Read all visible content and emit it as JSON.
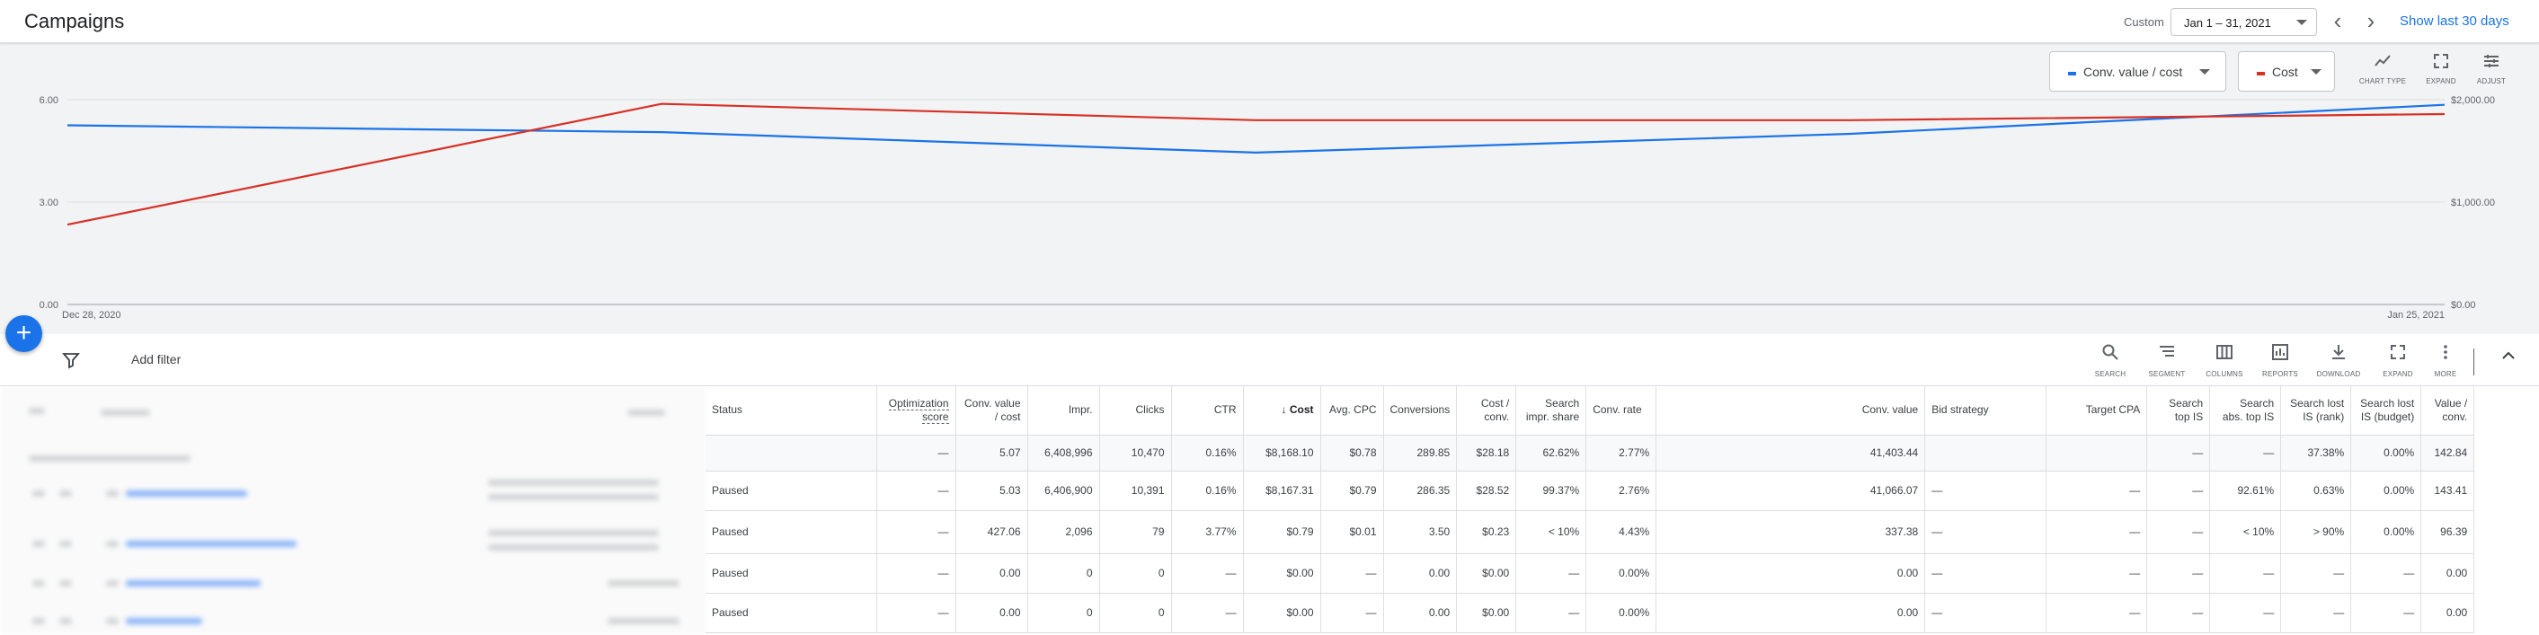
{
  "header": {
    "title": "Campaigns",
    "custom_label": "Custom",
    "date_range": "Jan 1 – 31, 2021",
    "show_last": "Show last 30 days"
  },
  "chart": {
    "metric1": "Conv. value / cost",
    "metric2": "Cost",
    "tools": [
      "CHART TYPE",
      "EXPAND",
      "ADJUST"
    ]
  },
  "chart_data": {
    "type": "line",
    "x": [
      "Dec 28, 2020",
      "Jan 4, 2021",
      "Jan 11, 2021",
      "Jan 18, 2021",
      "Jan 25, 2021"
    ],
    "x_labels": [
      "Dec 28, 2020",
      "Jan 25, 2021"
    ],
    "series": [
      {
        "name": "Conv. value / cost",
        "axis": "left",
        "color": "#1a73e8",
        "values": [
          5.25,
          5.05,
          4.45,
          5.0,
          5.85
        ]
      },
      {
        "name": "Cost",
        "axis": "right",
        "color": "#d93025",
        "values": [
          780,
          1960,
          1800,
          1800,
          1860
        ]
      }
    ],
    "y_left_ticks": [
      "0.00",
      "3.00",
      "6.00"
    ],
    "y_left_range": [
      0,
      6
    ],
    "y_right_ticks": [
      "$0.00",
      "$1,000.00",
      "$2,000.00"
    ],
    "y_right_range": [
      0,
      2000
    ],
    "grid": true
  },
  "filterbar": {
    "add_filter": "Add filter",
    "tools": [
      "SEARCH",
      "SEGMENT",
      "COLUMNS",
      "REPORTS",
      "DOWNLOAD",
      "EXPAND",
      "MORE"
    ]
  },
  "table": {
    "headers": [
      "Status",
      "Optimization score",
      "Conv. value / cost",
      "Impr.",
      "Clicks",
      "CTR",
      "Cost",
      "Avg. CPC",
      "Conversions",
      "Cost / conv.",
      "Search impr. share",
      "Conv. rate",
      "Conv. value",
      "Bid strategy",
      "Target CPA",
      "Search top IS",
      "Search abs. top IS",
      "Search lost IS (rank)",
      "Search lost IS (budget)",
      "Value / conv."
    ],
    "total": [
      "",
      "—",
      "5.07",
      "6,408,996",
      "10,470",
      "0.16%",
      "$8,168.10",
      "$0.78",
      "289.85",
      "$28.18",
      "62.62%",
      "2.77%",
      "41,403.44",
      "",
      "",
      "—",
      "—",
      "37.38%",
      "0.00%",
      "142.84"
    ],
    "rows": [
      [
        "Paused",
        "—",
        "5.03",
        "6,406,900",
        "10,391",
        "0.16%",
        "$8,167.31",
        "$0.79",
        "286.35",
        "$28.52",
        "99.37%",
        "2.76%",
        "41,066.07",
        "—",
        "—",
        "—",
        "92.61%",
        "0.63%",
        "0.00%",
        "143.41"
      ],
      [
        "Paused",
        "—",
        "427.06",
        "2,096",
        "79",
        "3.77%",
        "$0.79",
        "$0.01",
        "3.50",
        "$0.23",
        "< 10%",
        "4.43%",
        "337.38",
        "—",
        "—",
        "—",
        "< 10%",
        "> 90%",
        "0.00%",
        "96.39"
      ],
      [
        "Paused",
        "—",
        "0.00",
        "0",
        "0",
        "—",
        "$0.00",
        "—",
        "0.00",
        "$0.00",
        "—",
        "0.00%",
        "0.00",
        "—",
        "—",
        "—",
        "—",
        "—",
        "—",
        "0.00"
      ],
      [
        "Paused",
        "—",
        "0.00",
        "0",
        "0",
        "—",
        "$0.00",
        "—",
        "0.00",
        "$0.00",
        "—",
        "0.00%",
        "0.00",
        "—",
        "—",
        "—",
        "—",
        "—",
        "—",
        "0.00"
      ]
    ]
  }
}
